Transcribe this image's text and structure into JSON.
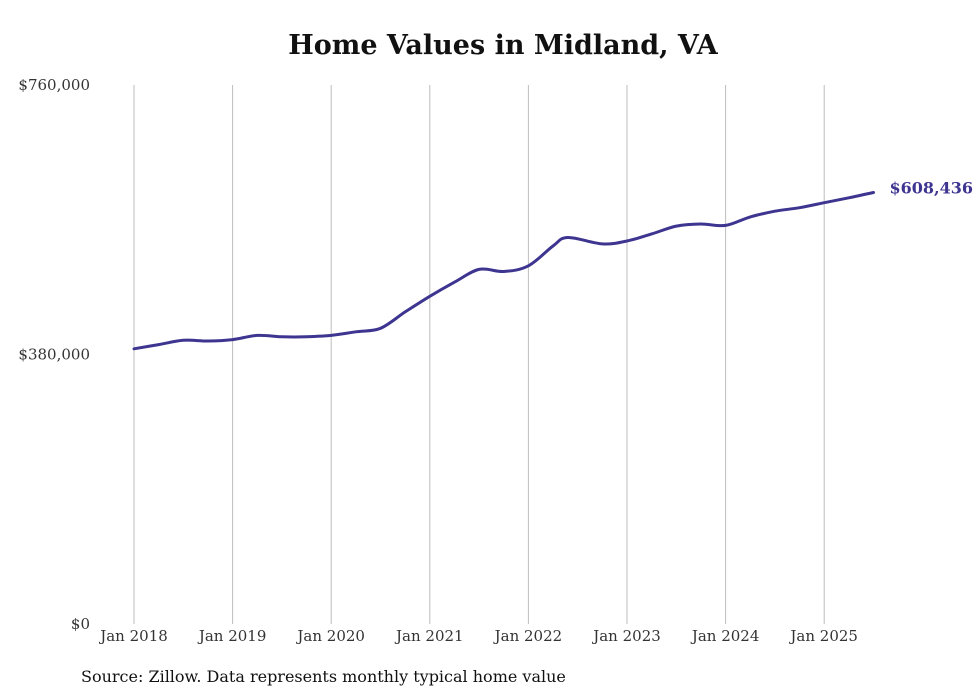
{
  "chart_data": {
    "type": "line",
    "title": "Home Values in Midland, VA",
    "xlabel": "",
    "ylabel": "",
    "ylim": [
      0,
      760000
    ],
    "y_ticks": [
      {
        "value": 0,
        "label": "$0"
      },
      {
        "value": 380000,
        "label": "$380,000"
      },
      {
        "value": 760000,
        "label": "$760,000"
      }
    ],
    "x_ticks": [
      {
        "value": 2018.0,
        "label": "Jan 2018"
      },
      {
        "value": 2019.0,
        "label": "Jan 2019"
      },
      {
        "value": 2020.0,
        "label": "Jan 2020"
      },
      {
        "value": 2021.0,
        "label": "Jan 2021"
      },
      {
        "value": 2022.0,
        "label": "Jan 2022"
      },
      {
        "value": 2023.0,
        "label": "Jan 2023"
      },
      {
        "value": 2024.0,
        "label": "Jan 2024"
      },
      {
        "value": 2025.0,
        "label": "Jan 2025"
      }
    ],
    "grid": "vertical",
    "line_color": "#3d3590",
    "series": [
      {
        "values": [
          {
            "x": 2018.0,
            "y": 388000
          },
          {
            "x": 2018.25,
            "y": 394000
          },
          {
            "x": 2018.5,
            "y": 400000
          },
          {
            "x": 2018.75,
            "y": 399000
          },
          {
            "x": 2019.0,
            "y": 401000
          },
          {
            "x": 2019.25,
            "y": 407000
          },
          {
            "x": 2019.5,
            "y": 405000
          },
          {
            "x": 2019.75,
            "y": 405000
          },
          {
            "x": 2020.0,
            "y": 407000
          },
          {
            "x": 2020.25,
            "y": 412000
          },
          {
            "x": 2020.5,
            "y": 417000
          },
          {
            "x": 2020.75,
            "y": 440000
          },
          {
            "x": 2021.0,
            "y": 462000
          },
          {
            "x": 2021.25,
            "y": 482000
          },
          {
            "x": 2021.5,
            "y": 500000
          },
          {
            "x": 2021.75,
            "y": 497000
          },
          {
            "x": 2022.0,
            "y": 505000
          },
          {
            "x": 2022.25,
            "y": 533000
          },
          {
            "x": 2022.4,
            "y": 545000
          },
          {
            "x": 2022.75,
            "y": 536000
          },
          {
            "x": 2023.0,
            "y": 540000
          },
          {
            "x": 2023.25,
            "y": 550000
          },
          {
            "x": 2023.5,
            "y": 561000
          },
          {
            "x": 2023.75,
            "y": 564000
          },
          {
            "x": 2024.0,
            "y": 562000
          },
          {
            "x": 2024.25,
            "y": 574000
          },
          {
            "x": 2024.5,
            "y": 582000
          },
          {
            "x": 2024.75,
            "y": 587000
          },
          {
            "x": 2025.0,
            "y": 594000
          },
          {
            "x": 2025.25,
            "y": 601000
          },
          {
            "x": 2025.5,
            "y": 608436
          }
        ]
      }
    ],
    "end_label": "$608,436",
    "source": "Source: Zillow. Data represents monthly typical home value"
  }
}
